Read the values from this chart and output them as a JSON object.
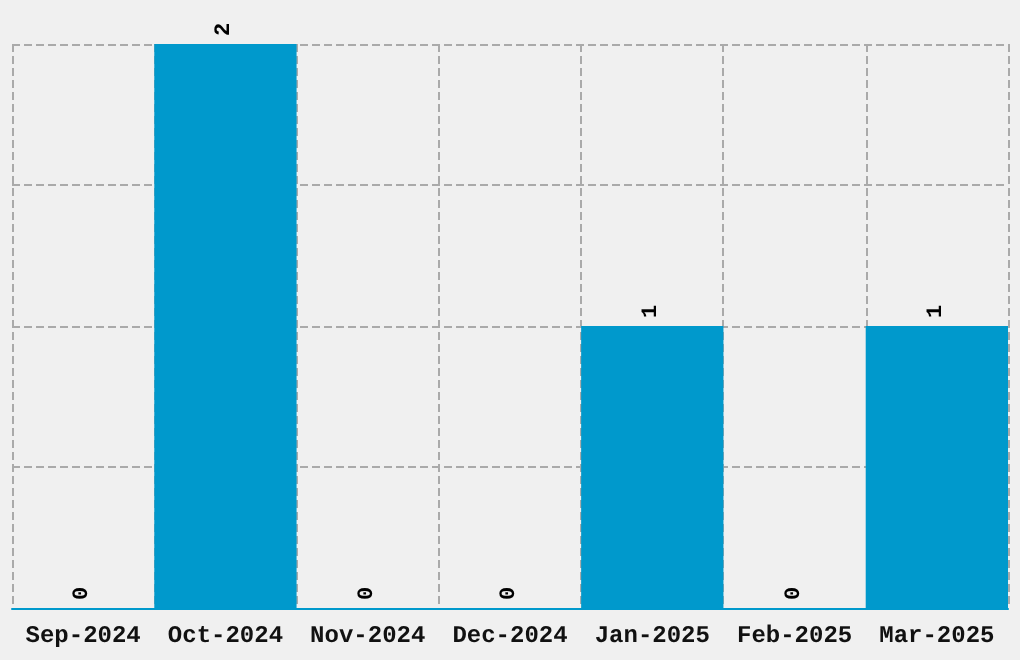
{
  "chart_data": {
    "type": "bar",
    "categories": [
      "Sep-2024",
      "Oct-2024",
      "Nov-2024",
      "Dec-2024",
      "Jan-2025",
      "Feb-2025",
      "Mar-2025"
    ],
    "values": [
      0,
      2,
      0,
      0,
      1,
      0,
      1
    ],
    "color": "#0099cc",
    "data_labels": true,
    "grid": true,
    "tick_labels": "x"
  }
}
